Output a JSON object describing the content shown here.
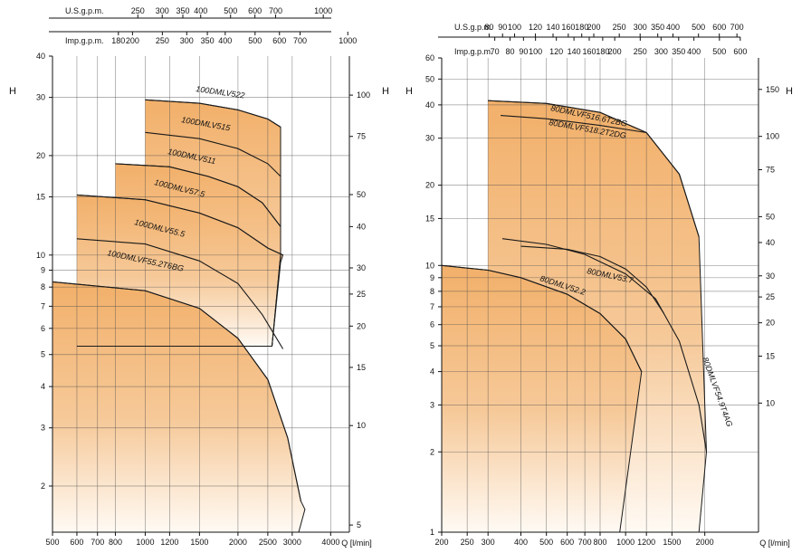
{
  "chart_data": [
    {
      "type": "area",
      "title": "",
      "xlabel": "Q [l/min]",
      "ylabel_left": "H [m]",
      "ylabel_right": "H [ft]",
      "xscale": "log",
      "yscale": "log",
      "xlim": [
        500,
        4600
      ],
      "ylim": [
        1.45,
        40
      ],
      "x_ticks": [
        500,
        600,
        700,
        800,
        1000,
        1200,
        1500,
        2000,
        2500,
        3000,
        4000
      ],
      "x_tick_labels": [
        "500",
        "600",
        "700",
        "800",
        "1000",
        "1200",
        "1500",
        "2000",
        "2500",
        "3000",
        "4000"
      ],
      "y_ticks_m": [
        2,
        3,
        4,
        5,
        6,
        7,
        8,
        9,
        10,
        15,
        20,
        30,
        40
      ],
      "y_tick_labels_m": [
        "2",
        "3",
        "4",
        "5",
        "6",
        "7",
        "8",
        "9",
        "10",
        "15",
        "20",
        "30",
        "40"
      ],
      "y_ticks_ft": [
        5,
        10,
        15,
        20,
        25,
        30,
        40,
        50,
        75,
        100
      ],
      "y_tick_labels_ft": [
        "5",
        "10",
        "15",
        "20",
        "25",
        "30",
        "40",
        "50",
        "75",
        "100"
      ],
      "us_gpm_label": "U.S.g.p.m.",
      "us_gpm_ticks": [
        250,
        300,
        350,
        400,
        500,
        600,
        700,
        1000
      ],
      "us_gpm_tick_labels": [
        "250",
        "300",
        "350",
        "400",
        "500",
        "600",
        "700",
        "1000"
      ],
      "imp_gpm_label": "Imp.g.p.m.",
      "imp_gpm_ticks": [
        180,
        200,
        250,
        300,
        350,
        400,
        500,
        600,
        700,
        1000
      ],
      "imp_gpm_tick_labels": [
        "180",
        "200",
        "250",
        "300",
        "350",
        "400",
        "500",
        "600",
        "700",
        "1000"
      ],
      "envelopes": [
        {
          "points": [
            [
              1000,
              29.5
            ],
            [
              1500,
              28.8
            ],
            [
              2000,
              27.5
            ],
            [
              2500,
              25.8
            ],
            [
              2750,
              24.4
            ],
            [
              2750,
              10
            ],
            [
              2580,
              5.3
            ],
            [
              1000,
              5.3
            ]
          ]
        },
        {
          "points": [
            [
              800,
              18.9
            ],
            [
              1200,
              18.5
            ],
            [
              1600,
              17.3
            ],
            [
              2000,
              16.1
            ],
            [
              2400,
              14.4
            ],
            [
              2750,
              12.2
            ],
            [
              2750,
              10
            ],
            [
              2580,
              5.3
            ],
            [
              800,
              5.3
            ]
          ]
        },
        {
          "points": [
            [
              600,
              15.2
            ],
            [
              1000,
              14.7
            ],
            [
              1500,
              13.4
            ],
            [
              2000,
              12.1
            ],
            [
              2500,
              10.5
            ],
            [
              2800,
              10
            ],
            [
              2750,
              9.5
            ],
            [
              2580,
              5.3
            ],
            [
              600,
              5.3
            ]
          ]
        },
        {
          "points": [
            [
              500,
              8.3
            ],
            [
              1000,
              7.8
            ],
            [
              1500,
              6.9
            ],
            [
              2000,
              5.6
            ],
            [
              2500,
              4.2
            ],
            [
              2900,
              2.8
            ],
            [
              3200,
              1.8
            ],
            [
              3300,
              1.7
            ],
            [
              3150,
              1.45
            ],
            [
              500,
              1.45
            ]
          ]
        }
      ],
      "series": [
        {
          "name": "100DMLV522",
          "x": [
            1000,
            1500,
            2000,
            2500,
            2750
          ],
          "y": [
            29.5,
            28.8,
            27.5,
            25.8,
            24.4
          ]
        },
        {
          "name": "100DMLV515",
          "x": [
            1000,
            1500,
            2000,
            2500,
            2750
          ],
          "y": [
            23.5,
            22.5,
            21.0,
            18.9,
            17.3
          ]
        },
        {
          "name": "100DMLV511",
          "x": [
            800,
            1200,
            1600,
            2000,
            2400,
            2750
          ],
          "y": [
            18.9,
            18.5,
            17.3,
            16.1,
            14.4,
            12.2
          ]
        },
        {
          "name": "100DMLV57.5",
          "x": [
            600,
            1000,
            1500,
            2000,
            2500,
            2800
          ],
          "y": [
            15.2,
            14.7,
            13.4,
            12.1,
            10.5,
            10.0
          ]
        },
        {
          "name": "100DMLV55.5",
          "x": [
            600,
            1000,
            1500,
            2000,
            2400,
            2800
          ],
          "y": [
            11.2,
            10.8,
            9.6,
            8.2,
            6.6,
            5.2
          ]
        },
        {
          "name": "100DMLVF55.2T6BG",
          "x": [
            500,
            1000,
            1500,
            2000,
            2500,
            2900,
            3200
          ],
          "y": [
            8.3,
            7.8,
            6.9,
            5.6,
            4.2,
            2.8,
            1.8
          ]
        }
      ]
    },
    {
      "type": "area",
      "title": "",
      "xlabel": "Q [l/min]",
      "ylabel_left": "H [m]",
      "ylabel_right": "H [ft]",
      "xscale": "log",
      "yscale": "log",
      "xlim": [
        200,
        3200
      ],
      "ylim": [
        1,
        60
      ],
      "x_ticks": [
        200,
        250,
        300,
        400,
        500,
        600,
        700,
        800,
        1000,
        1200,
        1500,
        2000
      ],
      "x_tick_labels": [
        "200",
        "250",
        "300",
        "400",
        "500",
        "600",
        "700",
        "800",
        "1000",
        "1200",
        "1500",
        "2000"
      ],
      "y_ticks_m": [
        1,
        2,
        3,
        4,
        5,
        6,
        7,
        8,
        9,
        10,
        15,
        20,
        30,
        40,
        50,
        60
      ],
      "y_tick_labels_m": [
        "1",
        "2",
        "3",
        "4",
        "5",
        "6",
        "7",
        "8",
        "9",
        "10",
        "15",
        "20",
        "30",
        "40",
        "50",
        "60"
      ],
      "y_ticks_ft": [
        10,
        15,
        20,
        25,
        30,
        40,
        50,
        75,
        100,
        150
      ],
      "y_tick_labels_ft": [
        "10",
        "15",
        "20",
        "25",
        "30",
        "40",
        "50",
        "75",
        "100",
        "150"
      ],
      "us_gpm_label": "U.S.g.p.m.",
      "us_gpm_ticks": [
        80,
        90,
        100,
        120,
        140,
        160,
        180,
        200,
        250,
        300,
        350,
        400,
        500,
        600,
        700
      ],
      "us_gpm_tick_labels": [
        "80",
        "90",
        "100",
        "120",
        "140",
        "160",
        "180",
        "200",
        "250",
        "300",
        "350",
        "400",
        "500",
        "600",
        "700"
      ],
      "imp_gpm_label": "Imp.g.p.m.",
      "imp_gpm_ticks": [
        70,
        80,
        90,
        100,
        120,
        140,
        160,
        180,
        200,
        250,
        300,
        350,
        400,
        500,
        600
      ],
      "imp_gpm_tick_labels": [
        "70",
        "80",
        "90",
        "100",
        "120",
        "140",
        "160",
        "180",
        "200",
        "250",
        "300",
        "350",
        "400",
        "500",
        "600"
      ],
      "envelopes": [
        {
          "points": [
            [
              300,
              41.5
            ],
            [
              500,
              40.5
            ],
            [
              800,
              37.5
            ],
            [
              1200,
              31.5
            ],
            [
              1600,
              22
            ],
            [
              1900,
              12.8
            ],
            [
              2030,
              2.0
            ],
            [
              1900,
              1.0
            ],
            [
              1000,
              1.0
            ],
            [
              300,
              1.0
            ]
          ]
        },
        {
          "points": [
            [
              200,
              10
            ],
            [
              300,
              9.6
            ],
            [
              400,
              9.0
            ],
            [
              600,
              7.8
            ],
            [
              800,
              6.6
            ],
            [
              1000,
              5.3
            ],
            [
              1150,
              4.0
            ],
            [
              950,
              1.0
            ],
            [
              200,
              1.0
            ]
          ]
        }
      ],
      "series": [
        {
          "name": "80DMLVF516.6T2BG",
          "x": [
            300,
            500,
            800,
            1200,
            1600,
            1900
          ],
          "y": [
            41.5,
            40.5,
            37.5,
            31.5,
            22,
            12.8
          ]
        },
        {
          "name": "80DMLVF518.2T2DG",
          "x": [
            335,
            500,
            800,
            1200
          ],
          "y": [
            36.5,
            35.5,
            33.5,
            31.5
          ]
        },
        {
          "name": "80DMLV53.7",
          "x": [
            400,
            600,
            800,
            1000,
            1200,
            1400
          ],
          "y": [
            11.8,
            11.5,
            10.8,
            9.7,
            8.3,
            6.6
          ]
        },
        {
          "name": "80DMLVF54.9T4AG",
          "x": [
            340,
            500,
            700,
            1000,
            1300,
            1600,
            1900,
            2030
          ],
          "y": [
            12.6,
            12.0,
            11.0,
            9.3,
            7.5,
            5.2,
            3.0,
            2.0
          ]
        },
        {
          "name": "80DMLV52.2",
          "x": [
            200,
            300,
            400,
            600,
            800,
            1000,
            1150
          ],
          "y": [
            10,
            9.6,
            9.0,
            7.8,
            6.6,
            5.3,
            4.0
          ]
        }
      ]
    }
  ]
}
